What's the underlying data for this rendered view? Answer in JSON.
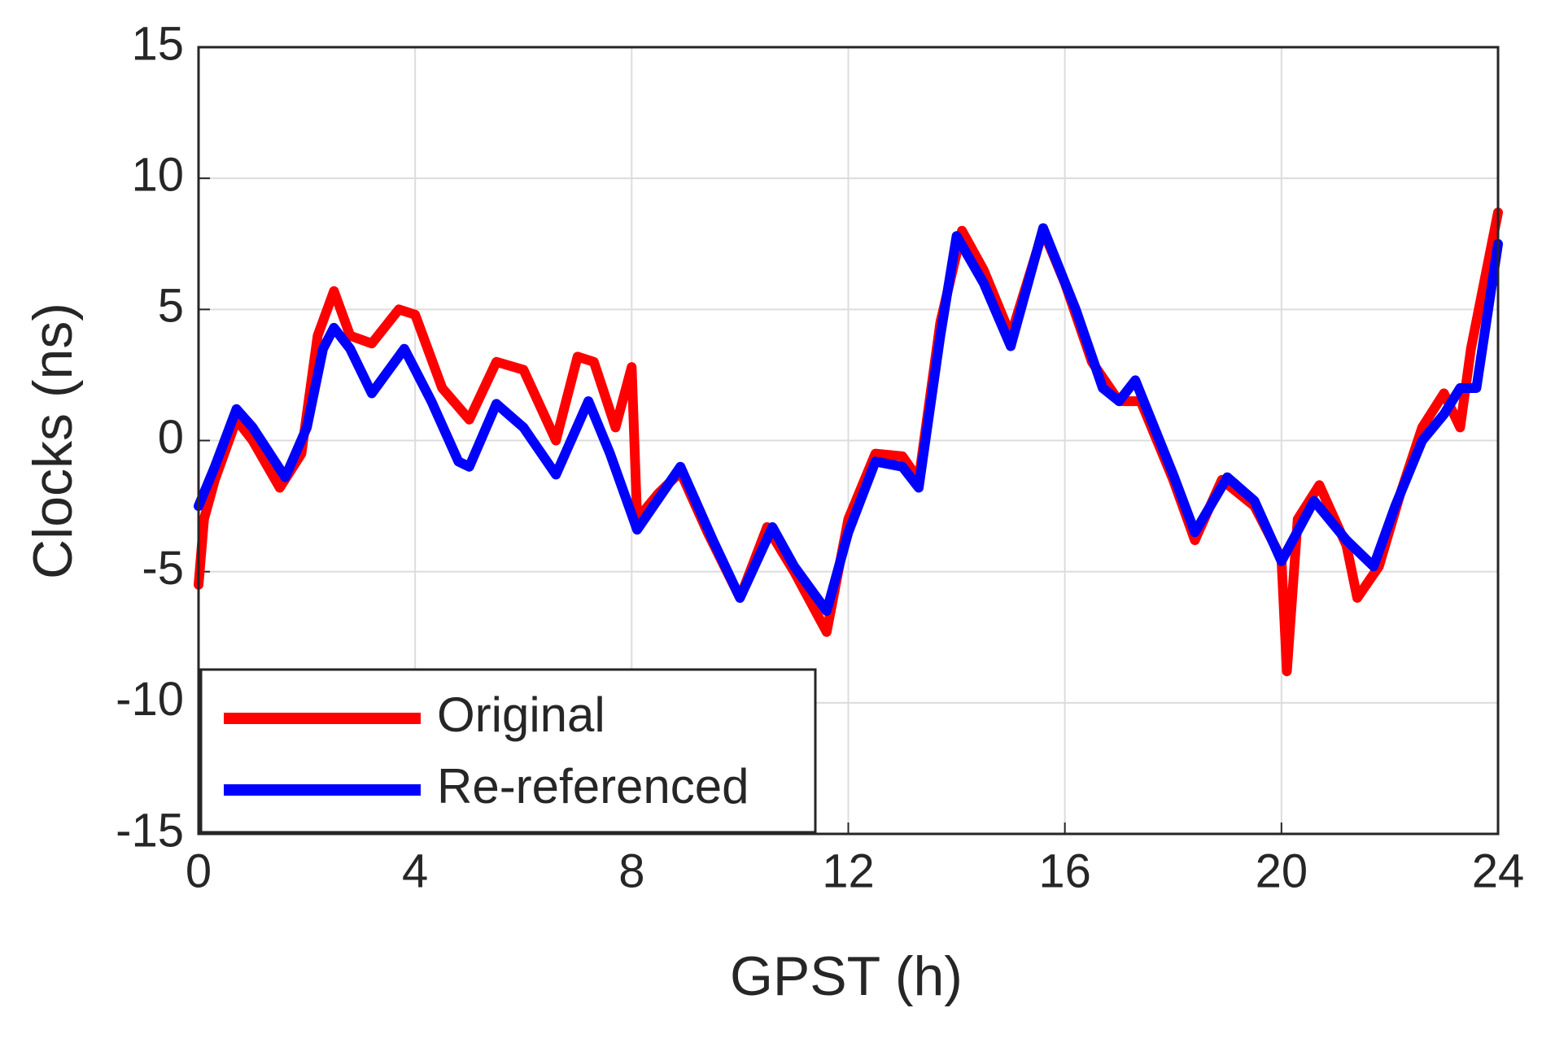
{
  "chart_data": {
    "type": "line",
    "x_label": "GPST (h)",
    "y_label": "Clocks (ns)",
    "xlim": [
      0,
      24
    ],
    "xticks": [
      0,
      4,
      8,
      12,
      16,
      20,
      24
    ],
    "ylim": [
      -15,
      15
    ],
    "yticks": [
      -15,
      -10,
      -5,
      0,
      5,
      10,
      15
    ],
    "grid": true,
    "legend": "lower-left",
    "series": [
      {
        "name": "Original",
        "color": "#ff0000",
        "x": [
          0,
          0.1,
          0.3,
          0.7,
          1.0,
          1.5,
          1.9,
          2.2,
          2.5,
          2.8,
          3.2,
          3.7,
          4.0,
          4.5,
          5.0,
          5.5,
          6.0,
          6.6,
          7.0,
          7.3,
          7.7,
          8.0,
          8.1,
          8.5,
          8.9,
          9.4,
          10.0,
          10.5,
          11.0,
          11.6,
          12.0,
          12.5,
          13.0,
          13.3,
          13.7,
          14.1,
          14.5,
          15.0,
          15.6,
          16.0,
          16.5,
          17.0,
          17.4,
          18.0,
          18.4,
          18.9,
          19.5,
          20.0,
          20.1,
          20.3,
          20.7,
          21.2,
          21.4,
          21.8,
          22.2,
          22.6,
          23.0,
          23.3,
          23.5,
          24
        ],
        "values": [
          -5.5,
          -3,
          -1.5,
          0.8,
          0,
          -1.8,
          -0.5,
          4,
          5.7,
          4,
          3.7,
          5,
          4.8,
          2,
          0.8,
          3,
          2.7,
          0,
          3.2,
          3,
          0.5,
          2.8,
          -3,
          -2,
          -1.2,
          -3.5,
          -6,
          -3.3,
          -5,
          -7.3,
          -3,
          -0.5,
          -0.6,
          -1.5,
          4.5,
          8,
          6.5,
          4,
          8,
          6,
          3,
          1.5,
          1.5,
          -1.5,
          -3.8,
          -1.5,
          -2.5,
          -4.5,
          -8.8,
          -3,
          -1.7,
          -4,
          -6,
          -4.8,
          -2,
          0.5,
          1.8,
          0.5,
          3.5,
          8.7
        ]
      },
      {
        "name": "Re-referenced",
        "color": "#0000ff",
        "x": [
          0,
          0.3,
          0.7,
          1.0,
          1.6,
          2.0,
          2.3,
          2.5,
          2.8,
          3.2,
          3.8,
          4.3,
          4.8,
          5.0,
          5.5,
          6.0,
          6.6,
          7.2,
          7.6,
          8.1,
          8.9,
          9.5,
          10.0,
          10.6,
          11.0,
          11.6,
          12.0,
          12.5,
          13.0,
          13.3,
          13.7,
          14.0,
          14.5,
          15.0,
          15.6,
          16.2,
          16.7,
          17.0,
          17.3,
          18.0,
          18.4,
          19.0,
          19.5,
          20.0,
          20.6,
          21.2,
          21.7,
          22.1,
          22.6,
          23.0,
          23.3,
          23.6,
          24
        ],
        "values": [
          -2.5,
          -1,
          1.2,
          0.5,
          -1.4,
          0.5,
          3.5,
          4.3,
          3.5,
          1.8,
          3.5,
          1.5,
          -0.8,
          -1,
          1.4,
          0.5,
          -1.3,
          1.5,
          -0.5,
          -3.4,
          -1,
          -3.8,
          -6,
          -3.3,
          -4.8,
          -6.5,
          -3.5,
          -0.8,
          -1,
          -1.8,
          4,
          7.8,
          6,
          3.6,
          8.1,
          5,
          2,
          1.5,
          2.3,
          -1.3,
          -3.5,
          -1.4,
          -2.3,
          -4.6,
          -2.3,
          -3.8,
          -4.8,
          -2.5,
          0,
          1,
          2,
          2,
          7.5
        ]
      }
    ]
  }
}
